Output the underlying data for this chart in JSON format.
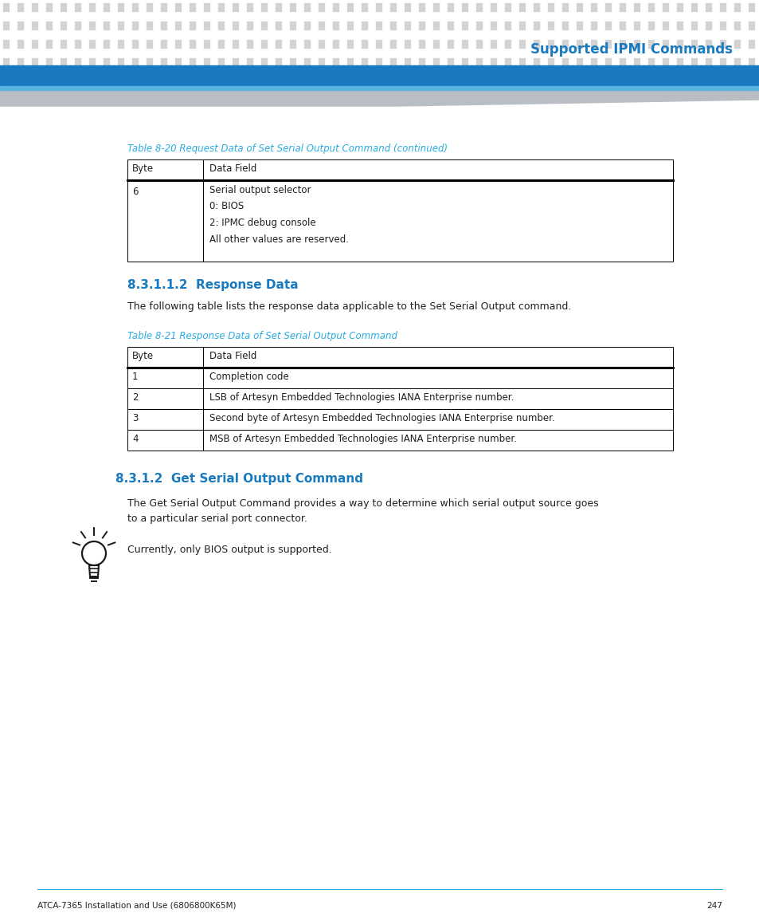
{
  "page_bg": "#ffffff",
  "header_dot_color": "#d3d3d3",
  "header_bar_color": "#1a7abf",
  "header_title": "Supported IPMI Commands",
  "header_title_color": "#1a7abf",
  "table1_caption": "Table 8-20 Request Data of Set Serial Output Command (continued)",
  "table1_caption_color": "#29abe2",
  "table1_header": [
    "Byte",
    "Data Field"
  ],
  "table1_row_byte": "6",
  "table1_row_field": "Serial output selector\n0: BIOS\n2: IPMC debug console\nAll other values are reserved.",
  "section1_number": "8.3.1.1.2",
  "section1_title": "  Response Data",
  "section1_color": "#1a7abf",
  "section1_body": "The following table lists the response data applicable to the Set Serial Output command.",
  "table2_caption": "Table 8-21 Response Data of Set Serial Output Command",
  "table2_caption_color": "#29abe2",
  "table2_header": [
    "Byte",
    "Data Field"
  ],
  "table2_rows": [
    [
      "1",
      "Completion code"
    ],
    [
      "2",
      "LSB of Artesyn Embedded Technologies IANA Enterprise number."
    ],
    [
      "3",
      "Second byte of Artesyn Embedded Technologies IANA Enterprise number."
    ],
    [
      "4",
      "MSB of Artesyn Embedded Technologies IANA Enterprise number."
    ]
  ],
  "section2_number": "8.3.1.2",
  "section2_title": "  Get Serial Output Command",
  "section2_color": "#1a7abf",
  "section2_body1": "The Get Serial Output Command provides a way to determine which serial output source goes\nto a particular serial port connector.",
  "section2_body2": "Currently, only BIOS output is supported.",
  "footer_text": "ATCA-7365 Installation and Use (6806800K65M)",
  "footer_page": "247",
  "footer_line_color": "#29abe2",
  "text_color": "#231f20",
  "table_border_color": "#000000"
}
